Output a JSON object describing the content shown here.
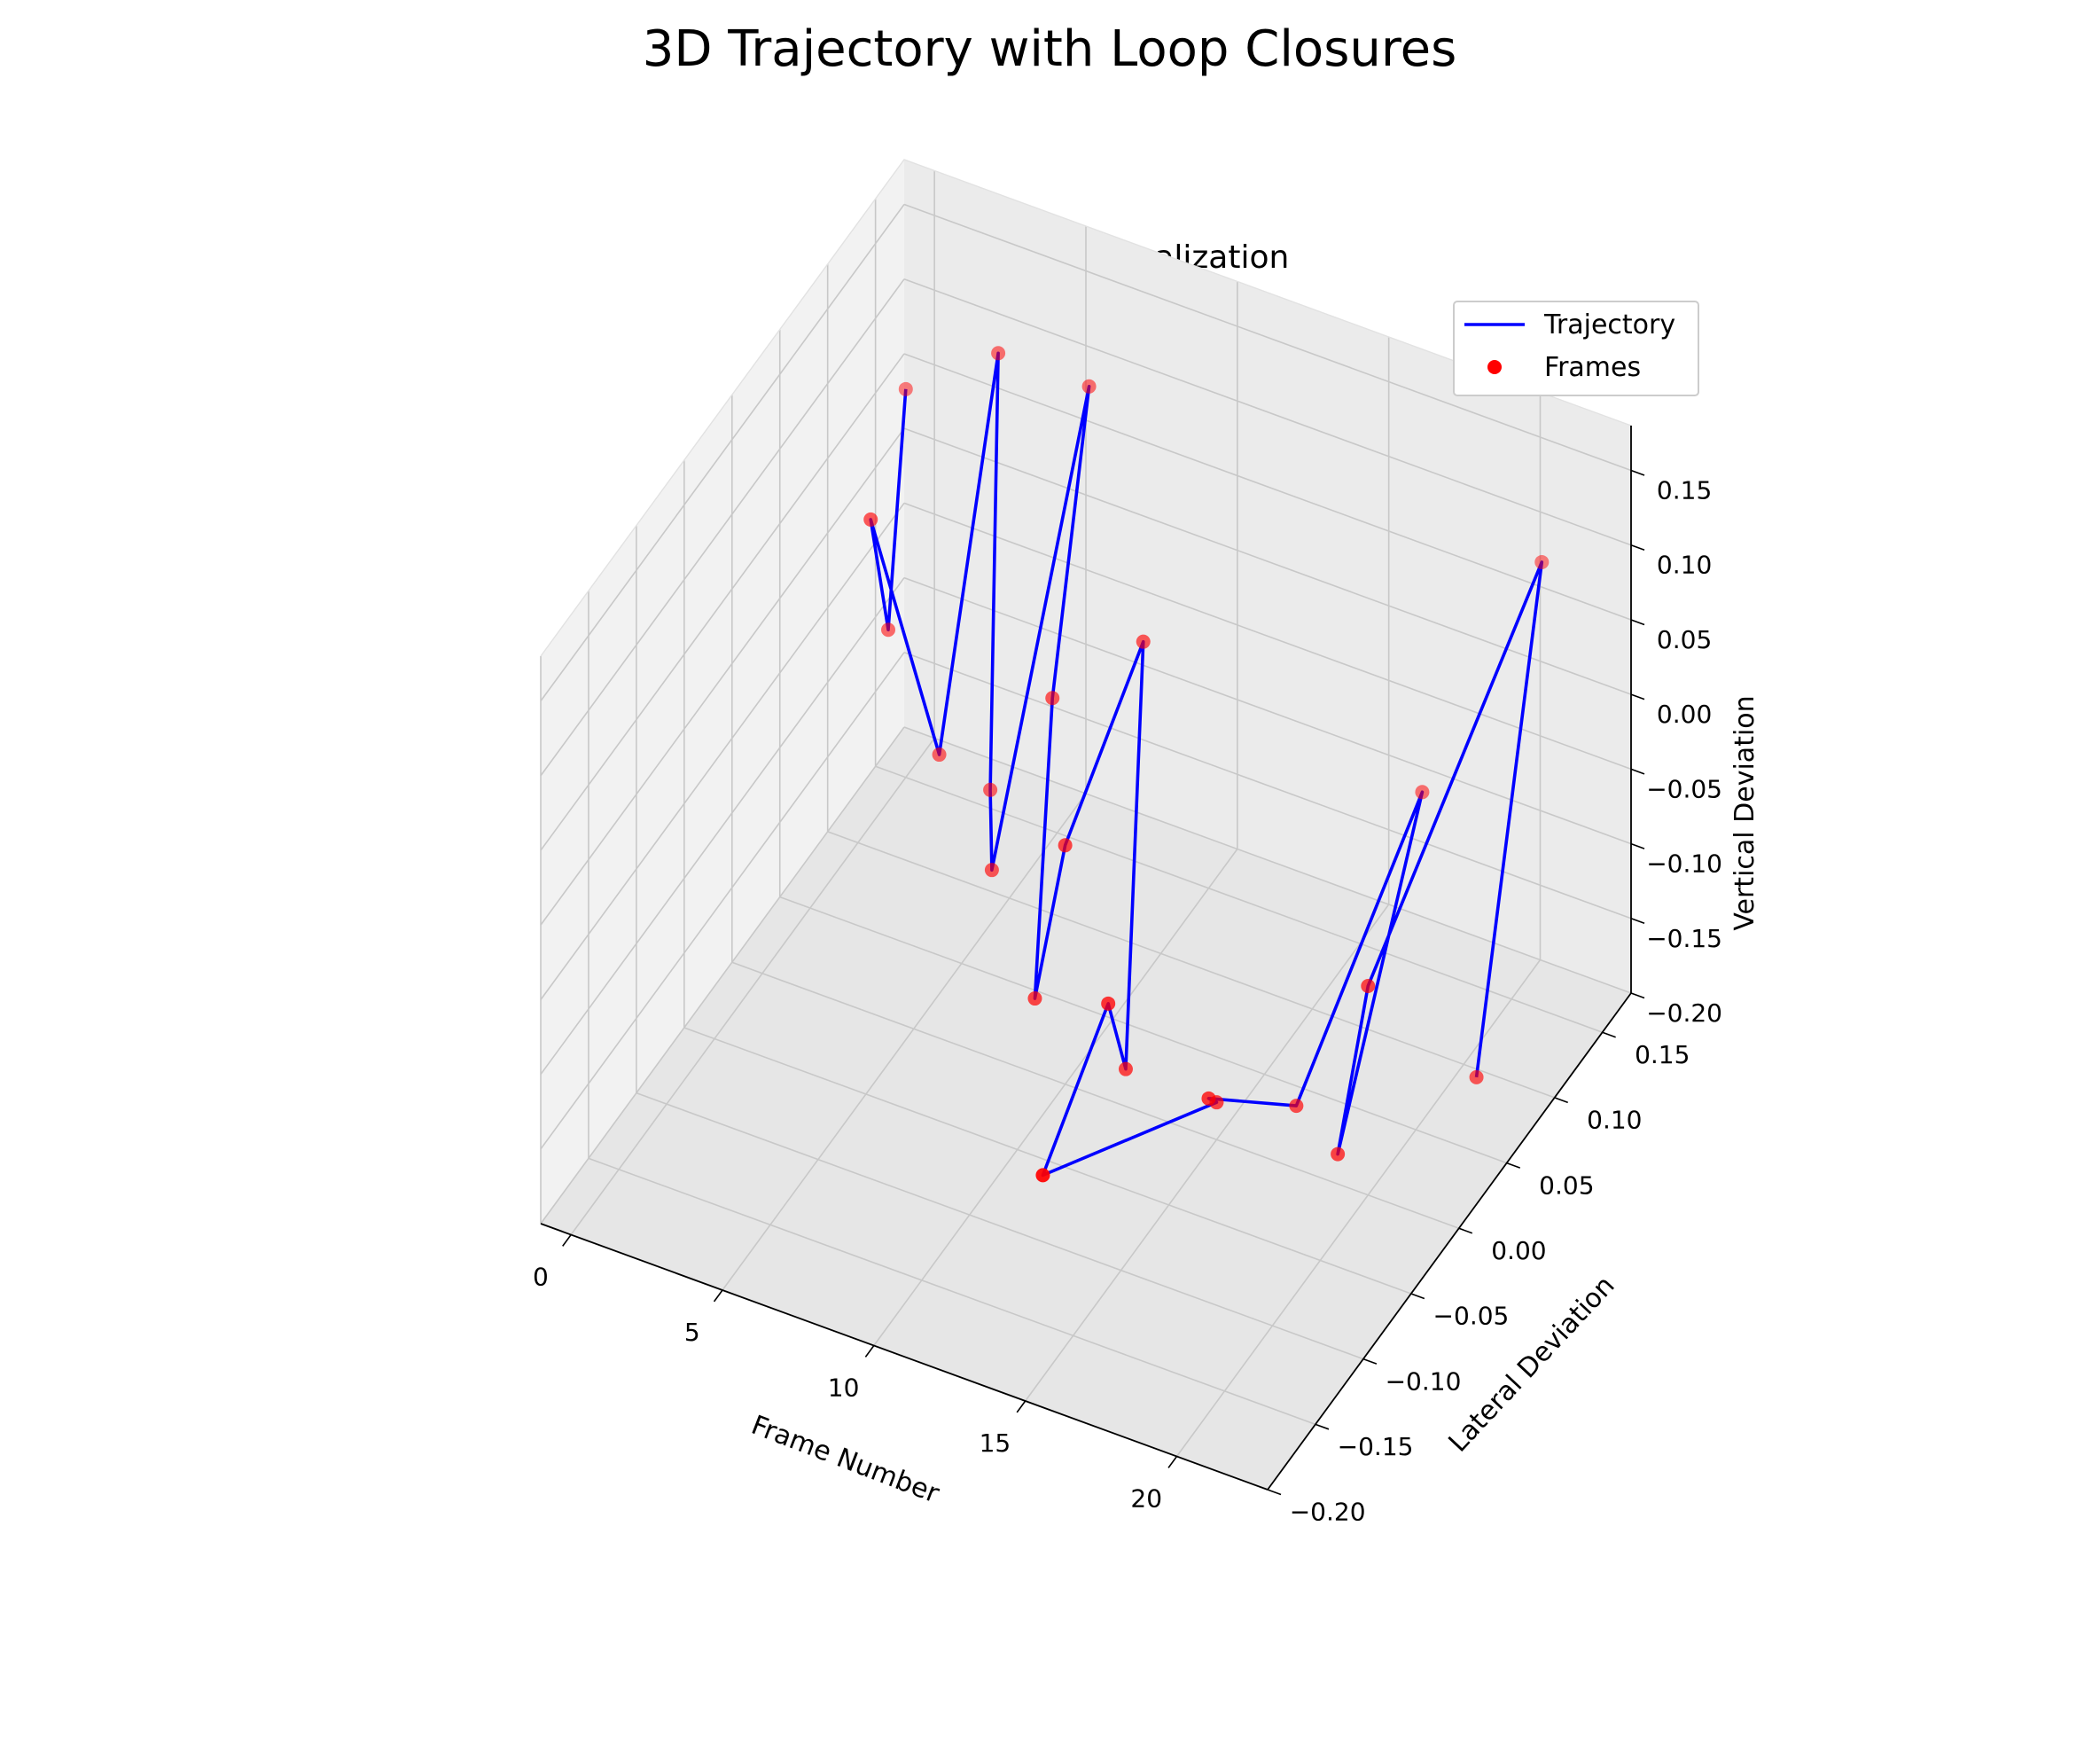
{
  "figure": {
    "title": "3D Trajectory with Loop Closures"
  },
  "chart_data": {
    "type": "line3d+scatter3d",
    "title": "3D Trajectory Visualization",
    "xlabel": "Frame Number",
    "ylabel": "Lateral Deviation",
    "zlabel": "Vertical Deviation",
    "xlim": [
      -1,
      23
    ],
    "ylim": [
      -0.2,
      0.18
    ],
    "zlim": [
      -0.2,
      0.18
    ],
    "x_ticks": [
      "0",
      "5",
      "10",
      "15",
      "20"
    ],
    "x_tick_values": [
      0,
      5,
      10,
      15,
      20
    ],
    "y_ticks": [
      "−0.20",
      "−0.15",
      "−0.10",
      "−0.05",
      "0.00",
      "0.05",
      "0.10",
      "0.15"
    ],
    "y_tick_values": [
      -0.2,
      -0.15,
      -0.1,
      -0.05,
      0.0,
      0.05,
      0.1,
      0.15
    ],
    "z_ticks": [
      "−0.20",
      "−0.15",
      "−0.10",
      "−0.05",
      "0.00",
      "0.05",
      "0.10",
      "0.15"
    ],
    "z_tick_values": [
      -0.2,
      -0.15,
      -0.1,
      -0.05,
      0.0,
      0.05,
      0.1,
      0.15
    ],
    "legend": {
      "placement": "top-right",
      "entries": [
        {
          "label": "Trajectory",
          "kind": "line",
          "color": "#0000ff"
        },
        {
          "label": "Frames",
          "kind": "marker",
          "color": "#ff0000"
        }
      ]
    },
    "series": [
      {
        "name": "Trajectory",
        "kind": "line",
        "color": "#0000ff",
        "x": [
          0,
          1,
          2,
          3,
          4,
          5,
          6,
          7,
          8,
          9,
          10,
          11,
          12,
          13,
          14,
          15,
          16,
          17,
          18,
          19,
          20,
          21,
          22
        ],
        "y": [
          0.15,
          0.1,
          0.05,
          0.09,
          0.12,
          0.08,
          0.05,
          0.12,
          0.05,
          0.0,
          0.0,
          0.05,
          0.0,
          -0.05,
          -0.15,
          0.0,
          -0.04,
          0.02,
          0.12,
          0.0,
          0.0,
          0.15,
          0.05
        ],
        "z": [
          0.06,
          -0.05,
          0.075,
          -0.11,
          0.14,
          -0.11,
          -0.13,
          0.14,
          0.0,
          -0.15,
          -0.04,
          0.06,
          -0.175,
          -0.08,
          -0.1,
          -0.175,
          -0.13,
          -0.18,
          -0.05,
          -0.18,
          -0.06,
          0.1,
          -0.15
        ]
      },
      {
        "name": "Frames",
        "kind": "scatter",
        "color": "#ff0000",
        "x": [
          0,
          1,
          2,
          3,
          4,
          5,
          6,
          7,
          8,
          9,
          10,
          11,
          12,
          13,
          14,
          15,
          16,
          17,
          18,
          19,
          20,
          21,
          22
        ],
        "y": [
          0.15,
          0.1,
          0.05,
          0.09,
          0.12,
          0.08,
          0.05,
          0.12,
          0.05,
          0.0,
          0.0,
          0.05,
          0.0,
          -0.05,
          -0.15,
          0.0,
          -0.04,
          0.02,
          0.12,
          0.0,
          0.0,
          0.15,
          0.05
        ],
        "z": [
          0.06,
          -0.05,
          0.075,
          -0.11,
          0.14,
          -0.11,
          -0.13,
          0.14,
          0.0,
          -0.15,
          -0.04,
          0.06,
          -0.175,
          -0.08,
          -0.1,
          -0.175,
          -0.13,
          -0.18,
          -0.05,
          -0.18,
          -0.06,
          0.1,
          -0.15
        ]
      }
    ],
    "grid": true,
    "pane_colors": {
      "x": "#f2f2f2",
      "y": "#ebebeb",
      "z": "#e6e6e6"
    }
  }
}
